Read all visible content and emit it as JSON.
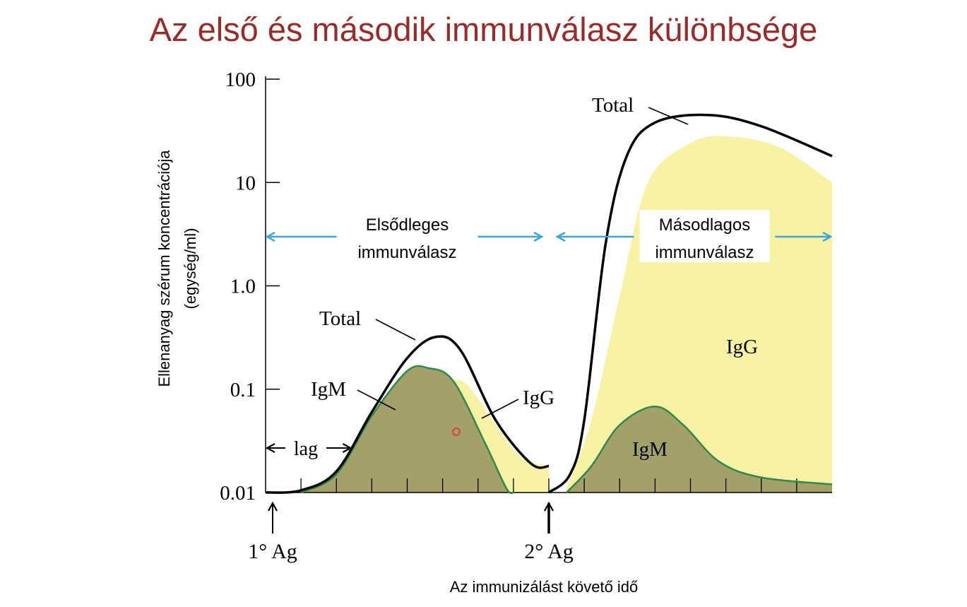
{
  "slide": {
    "title": "Az első és második immunválasz különbsége"
  },
  "chart_data": {
    "type": "area",
    "title": "Az első és második immunválasz különbsége",
    "ylabel_line1": "Ellenanyag szérum koncentrációja",
    "ylabel_line2": "(egység/ml)",
    "xlabel": "Az immunizálást követő idő",
    "y_scale": "log",
    "ylim": [
      0.01,
      100
    ],
    "yticks": [
      {
        "value": 100,
        "label": "100"
      },
      {
        "value": 10,
        "label": "10"
      },
      {
        "value": 1,
        "label": "1.0"
      },
      {
        "value": 0.1,
        "label": "0.1"
      },
      {
        "value": 0.01,
        "label": "0.01"
      }
    ],
    "x_ticks_count": 15,
    "events": [
      {
        "label": "1° Ag",
        "x": 0
      },
      {
        "label": "2° Ag",
        "x": 8
      }
    ],
    "phases": [
      {
        "label_line1": "Elsődleges",
        "label_line2": "immunválasz",
        "x_start": 0,
        "x_end": 8
      },
      {
        "label_line1": "Másodlagos",
        "label_line2": "immunválasz",
        "x_start": 8,
        "x_end": 16
      }
    ],
    "lag_label": "lag",
    "primary": {
      "total": [
        [
          0,
          0.01
        ],
        [
          1,
          0.0105
        ],
        [
          2,
          0.016
        ],
        [
          3,
          0.06
        ],
        [
          4,
          0.2
        ],
        [
          4.8,
          0.32
        ],
        [
          5.5,
          0.24
        ],
        [
          6.5,
          0.05
        ],
        [
          7.5,
          0.019
        ],
        [
          8,
          0.018
        ]
      ],
      "igm": [
        [
          1,
          0.01
        ],
        [
          2,
          0.015
        ],
        [
          3,
          0.055
        ],
        [
          4,
          0.15
        ],
        [
          4.6,
          0.16
        ],
        [
          5.3,
          0.12
        ],
        [
          6.2,
          0.03
        ],
        [
          6.8,
          0.011
        ],
        [
          7,
          0.01
        ]
      ],
      "igg": [
        [
          4.4,
          0.1
        ],
        [
          5.2,
          0.12
        ],
        [
          5.7,
          0.11
        ],
        [
          6.5,
          0.045
        ],
        [
          7.2,
          0.022
        ],
        [
          8,
          0.018
        ]
      ],
      "labels": {
        "total": "Total",
        "igm": "IgM",
        "igg": "IgG"
      }
    },
    "secondary": {
      "total": [
        [
          8,
          0.01
        ],
        [
          8.6,
          0.015
        ],
        [
          9,
          0.05
        ],
        [
          9.6,
          2.5
        ],
        [
          10.2,
          18
        ],
        [
          11,
          38
        ],
        [
          12.5,
          45
        ],
        [
          14,
          35
        ],
        [
          16,
          18
        ]
      ],
      "igg": [
        [
          8.5,
          0.011
        ],
        [
          9.2,
          0.05
        ],
        [
          10,
          0.8
        ],
        [
          10.8,
          10
        ],
        [
          12,
          24
        ],
        [
          13,
          28
        ],
        [
          14.5,
          22
        ],
        [
          16,
          10
        ]
      ],
      "igm": [
        [
          8.5,
          0.01
        ],
        [
          9.2,
          0.018
        ],
        [
          10,
          0.045
        ],
        [
          11,
          0.068
        ],
        [
          11.8,
          0.045
        ],
        [
          12.8,
          0.02
        ],
        [
          14,
          0.014
        ],
        [
          16,
          0.012
        ]
      ],
      "labels": {
        "total": "Total",
        "igm": "IgM",
        "igg": "IgG"
      }
    },
    "colors": {
      "total_line": "#000000",
      "igm_line": "#2e8b4a",
      "igm_fill": "#a3a06a",
      "igg_fill": "#f8f2a4",
      "phase_arrow": "#3fa3dc",
      "title": "#9b2a2a"
    }
  }
}
